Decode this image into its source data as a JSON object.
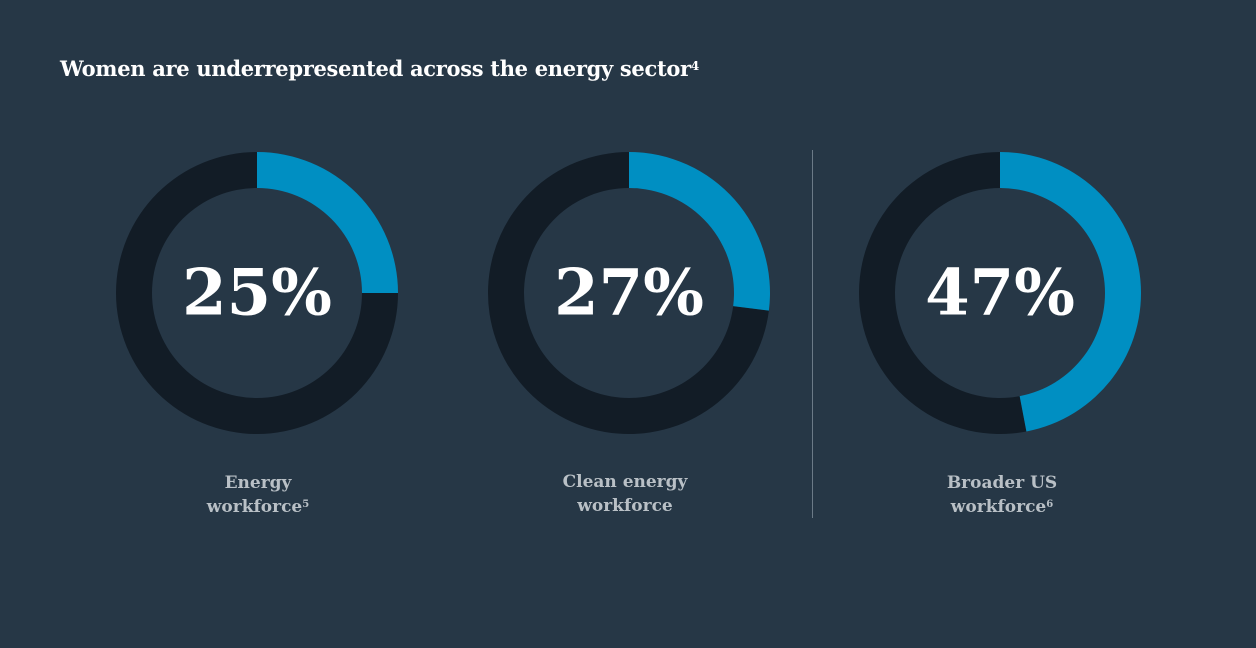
{
  "title": "Women are underrepresented across the energy sector",
  "title_footnote": "4",
  "colors": {
    "background": "#263746",
    "track": "#121c26",
    "accent": "#008fc2",
    "title": "#ffffff",
    "label": "#b9c0c6"
  },
  "chart_data": [
    {
      "type": "pie",
      "value": 25,
      "value_label": "25%",
      "label_lines": [
        "Energy",
        "workforce"
      ],
      "footnote": "5"
    },
    {
      "type": "pie",
      "value": 27,
      "value_label": "27%",
      "label_lines": [
        "Clean energy",
        "workforce"
      ],
      "footnote": ""
    },
    {
      "type": "pie",
      "value": 47,
      "value_label": "47%",
      "label_lines": [
        "Broader US",
        "workforce"
      ],
      "footnote": "6"
    }
  ]
}
